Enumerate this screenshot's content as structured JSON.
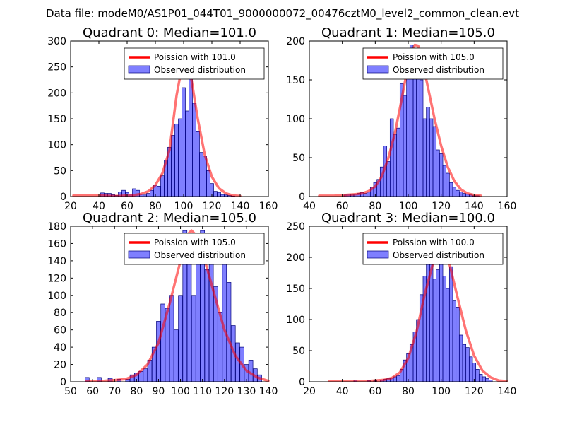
{
  "figure": {
    "suptitle": "Data file: modeM0/AS1P01_044T01_9000000072_00476cztM0_level2_common_clean.evt"
  },
  "chart_data": [
    {
      "type": "bar",
      "title": "Quadrant 0: Median=101.0",
      "xlim": [
        20,
        160
      ],
      "ylim": [
        0,
        300
      ],
      "xticks": [
        20,
        40,
        60,
        80,
        100,
        120,
        140,
        160
      ],
      "yticks": [
        0,
        50,
        100,
        150,
        200,
        250,
        300
      ],
      "bin_width": 2.5,
      "hist_x": [
        42.5,
        45,
        47.5,
        50,
        52.5,
        55,
        57.5,
        60,
        62.5,
        65,
        67.5,
        70,
        72.5,
        75,
        77.5,
        80,
        82.5,
        85,
        87.5,
        90,
        92.5,
        95,
        97.5,
        100,
        102.5,
        105,
        107.5,
        110,
        112.5,
        115,
        117.5,
        120,
        122.5,
        125,
        127.5,
        130,
        132.5,
        135
      ],
      "hist_y": [
        7,
        6,
        6,
        4,
        2,
        9,
        12,
        8,
        5,
        15,
        12,
        5,
        3,
        6,
        12,
        22,
        20,
        40,
        70,
        95,
        118,
        140,
        150,
        210,
        165,
        265,
        180,
        125,
        85,
        78,
        50,
        25,
        10,
        8,
        4,
        3,
        2,
        1
      ],
      "fit_x": [
        22,
        30,
        40,
        50,
        55,
        60,
        65,
        70,
        75,
        80,
        85,
        90,
        95,
        100,
        105,
        110,
        115,
        120,
        125,
        130,
        135,
        140
      ],
      "fit_y": [
        2,
        2,
        2,
        1,
        1,
        2,
        3,
        5,
        10,
        22,
        45,
        90,
        195,
        268,
        235,
        150,
        80,
        38,
        16,
        6,
        2,
        1
      ],
      "legend": {
        "fit": "Poission with 101.0",
        "hist": "Observed distribution"
      }
    },
    {
      "type": "bar",
      "title": "Quadrant 1: Median=105.0",
      "xlim": [
        40,
        160
      ],
      "ylim": [
        0,
        200
      ],
      "xticks": [
        40,
        60,
        80,
        100,
        120,
        140,
        160
      ],
      "yticks": [
        0,
        50,
        100,
        150,
        200
      ],
      "bin_width": 2,
      "hist_x": [
        62,
        64,
        66,
        68,
        70,
        72,
        74,
        76,
        78,
        80,
        82,
        84,
        86,
        88,
        90,
        92,
        94,
        96,
        98,
        100,
        102,
        104,
        106,
        108,
        110,
        112,
        114,
        116,
        118,
        120,
        122,
        124,
        126,
        128,
        130,
        132,
        134,
        136,
        138,
        140,
        142
      ],
      "hist_y": [
        2,
        3,
        2,
        3,
        4,
        5,
        4,
        6,
        12,
        18,
        22,
        38,
        65,
        45,
        100,
        80,
        88,
        145,
        130,
        180,
        195,
        165,
        190,
        150,
        100,
        115,
        100,
        90,
        60,
        55,
        40,
        30,
        18,
        12,
        8,
        6,
        4,
        3,
        2,
        1,
        1
      ],
      "fit_x": [
        46,
        55,
        62,
        68,
        72,
        76,
        80,
        84,
        88,
        92,
        96,
        100,
        104,
        106,
        108,
        112,
        116,
        120,
        124,
        128,
        132,
        136,
        140,
        144
      ],
      "fit_y": [
        1,
        1,
        2,
        3,
        4,
        7,
        13,
        26,
        50,
        82,
        125,
        170,
        195,
        194,
        180,
        140,
        100,
        65,
        38,
        20,
        9,
        4,
        2,
        1
      ],
      "legend": {
        "fit": "Poission with 105.0",
        "hist": "Observed distribution"
      }
    },
    {
      "type": "bar",
      "title": "Quadrant 2: Median=105.0",
      "xlim": [
        50,
        140
      ],
      "ylim": [
        0,
        180
      ],
      "xticks": [
        50,
        60,
        70,
        80,
        90,
        100,
        110,
        120,
        130,
        140
      ],
      "yticks": [
        0,
        20,
        40,
        60,
        80,
        100,
        120,
        140,
        160,
        180
      ],
      "bin_width": 1.9,
      "hist_x": [
        57.5,
        63,
        68,
        72,
        76,
        78,
        80,
        82,
        84,
        86,
        88,
        90,
        92,
        94,
        96,
        98,
        100,
        102,
        104,
        106,
        108,
        110,
        112,
        114,
        116,
        118,
        120,
        122,
        124,
        126,
        128,
        130,
        132,
        134,
        136
      ],
      "hist_y": [
        5,
        5,
        4,
        3,
        3,
        8,
        10,
        12,
        15,
        25,
        40,
        70,
        90,
        85,
        100,
        60,
        100,
        175,
        170,
        100,
        150,
        175,
        130,
        145,
        110,
        80,
        140,
        115,
        65,
        45,
        40,
        20,
        25,
        15,
        8
      ],
      "fit_x": [
        57,
        65,
        70,
        75,
        80,
        85,
        90,
        95,
        100,
        103,
        105,
        107,
        110,
        115,
        120,
        125,
        130,
        135,
        140
      ],
      "fit_y": [
        1,
        1,
        2,
        3,
        8,
        20,
        45,
        90,
        140,
        170,
        175,
        170,
        150,
        105,
        60,
        30,
        13,
        5,
        1
      ],
      "legend": {
        "fit": "Poission with 105.0",
        "hist": "Observed distribution"
      }
    },
    {
      "type": "bar",
      "title": "Quadrant 3: Median=100.0",
      "xlim": [
        20,
        140
      ],
      "ylim": [
        0,
        250
      ],
      "xticks": [
        20,
        40,
        60,
        80,
        100,
        120,
        140
      ],
      "yticks": [
        0,
        50,
        100,
        150,
        200,
        250
      ],
      "bin_width": 2,
      "hist_x": [
        48,
        56,
        60,
        64,
        66,
        68,
        70,
        72,
        74,
        76,
        78,
        80,
        82,
        84,
        86,
        88,
        90,
        92,
        94,
        96,
        98,
        100,
        102,
        104,
        106,
        108,
        110,
        112,
        114,
        116,
        118,
        120,
        122,
        124,
        126,
        128,
        130
      ],
      "hist_y": [
        3,
        2,
        2,
        3,
        4,
        5,
        6,
        8,
        10,
        20,
        35,
        45,
        60,
        80,
        100,
        140,
        170,
        210,
        190,
        165,
        180,
        195,
        170,
        150,
        185,
        130,
        120,
        75,
        60,
        55,
        40,
        30,
        20,
        12,
        8,
        5,
        3
      ],
      "fit_x": [
        32,
        45,
        55,
        60,
        65,
        70,
        75,
        80,
        85,
        90,
        95,
        98,
        100,
        102,
        105,
        110,
        115,
        120,
        125,
        130,
        135,
        140
      ],
      "fit_y": [
        1,
        1,
        1,
        2,
        3,
        6,
        15,
        38,
        80,
        140,
        190,
        210,
        212,
        208,
        190,
        135,
        82,
        42,
        18,
        7,
        2,
        1
      ],
      "legend": {
        "fit": "Poission with 100.0",
        "hist": "Observed distribution"
      }
    }
  ]
}
